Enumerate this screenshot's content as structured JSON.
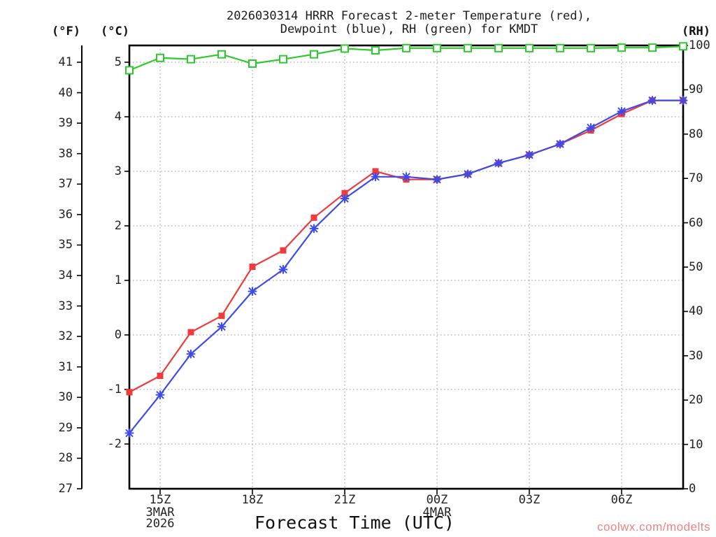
{
  "chart_data": {
    "type": "line",
    "title_line1": "2026030314 HRRR Forecast 2-meter Temperature (red),",
    "title_line2": "Dewpoint (blue), RH (green) for KMDT",
    "xlabel": "Forecast Time (UTC)",
    "watermark": "coolwx.com/modelts",
    "grid": true,
    "x_hours": [
      "14Z",
      "15Z",
      "16Z",
      "17Z",
      "18Z",
      "19Z",
      "20Z",
      "21Z",
      "22Z",
      "23Z",
      "00Z",
      "01Z",
      "02Z",
      "03Z",
      "04Z",
      "05Z",
      "06Z",
      "07Z",
      "08Z"
    ],
    "x_tick_labels": [
      "15Z",
      "18Z",
      "21Z",
      "00Z",
      "03Z",
      "06Z"
    ],
    "x_tick_hour_index": [
      1,
      4,
      7,
      10,
      13,
      16
    ],
    "x_date_labels": [
      {
        "tick_index": 0,
        "lines": [
          "3MAR",
          "2026"
        ]
      },
      {
        "tick_index": 3,
        "lines": [
          "4MAR"
        ]
      }
    ],
    "axes": {
      "f": {
        "header": "(°F)",
        "ticks": [
          41,
          40,
          39,
          38,
          37,
          36,
          35,
          34,
          33,
          32,
          31,
          30,
          29,
          28,
          27
        ]
      },
      "c": {
        "header": "(°C)",
        "ticks": [
          5,
          4,
          3,
          2,
          1,
          0,
          -1,
          -2
        ],
        "range_visible": [
          -2.8,
          5.3
        ]
      },
      "rh": {
        "header": "(RH)",
        "ticks": [
          100,
          90,
          80,
          70,
          60,
          50,
          40,
          30,
          20,
          10,
          0
        ],
        "range": [
          0,
          100
        ]
      }
    },
    "series": [
      {
        "name": "2-meter Temperature",
        "axis": "c",
        "marker": "filled-square",
        "color": "#ef3b3b",
        "values": [
          -1.05,
          -0.75,
          0.05,
          0.35,
          1.25,
          1.55,
          2.15,
          2.6,
          3.0,
          2.85,
          2.85,
          2.95,
          3.15,
          3.3,
          3.5,
          3.75,
          4.05,
          4.3,
          4.3
        ]
      },
      {
        "name": "Dewpoint",
        "axis": "c",
        "marker": "asterisk",
        "color": "#3f4be8",
        "values": [
          -1.8,
          -1.1,
          -0.35,
          0.15,
          0.8,
          1.2,
          1.95,
          2.5,
          2.9,
          2.9,
          2.85,
          2.95,
          3.15,
          3.3,
          3.5,
          3.8,
          4.1,
          4.3,
          4.3
        ]
      },
      {
        "name": "Relative Humidity",
        "axis": "rh",
        "marker": "open-square",
        "color": "#2dc92d",
        "values": [
          94.4,
          97.2,
          96.9,
          98.0,
          95.9,
          96.9,
          98.0,
          99.3,
          98.9,
          99.4,
          99.4,
          99.4,
          99.4,
          99.4,
          99.4,
          99.4,
          99.5,
          99.5,
          99.8
        ]
      }
    ],
    "colors": {
      "temperature": "#ef3b3b",
      "dewpoint": "#3f4be8",
      "rh": "#2dc92d",
      "grid": "#9a9a9a",
      "frame": "#000000",
      "watermark": "#ee8181"
    }
  }
}
